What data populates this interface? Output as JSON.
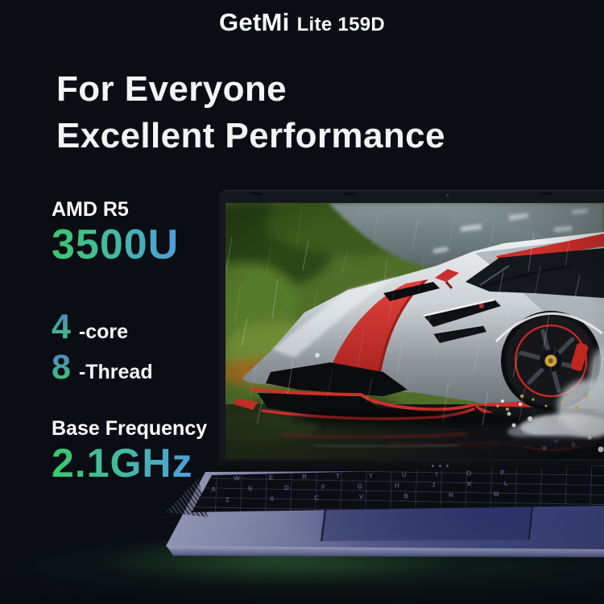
{
  "header": {
    "brand": "GetMi",
    "model": "Lite 159D"
  },
  "headline": {
    "line1": "For Everyone",
    "line2": "Excellent Performance"
  },
  "specs": {
    "cpu": {
      "label": "AMD R5",
      "model": "3500U"
    },
    "cores": {
      "value": "4",
      "suffix": "-core"
    },
    "threads": {
      "value": "8",
      "suffix": "-Thread"
    },
    "frequency": {
      "label": "Base Frequency",
      "value": "2.1GHz"
    }
  },
  "laptop": {
    "keyboard_rows": [
      "QWERTYUIOP",
      "ASDFGHJKL",
      "ZXCVBNM"
    ]
  },
  "colors": {
    "background": "#0a0e14",
    "text": "#f5f6f7",
    "gradient_green": "#3ec573",
    "gradient_blue": "#4e9fd8",
    "car_red": "#c92f2b",
    "deck_purple": "#565d87",
    "glow_green": "#3a783e"
  }
}
